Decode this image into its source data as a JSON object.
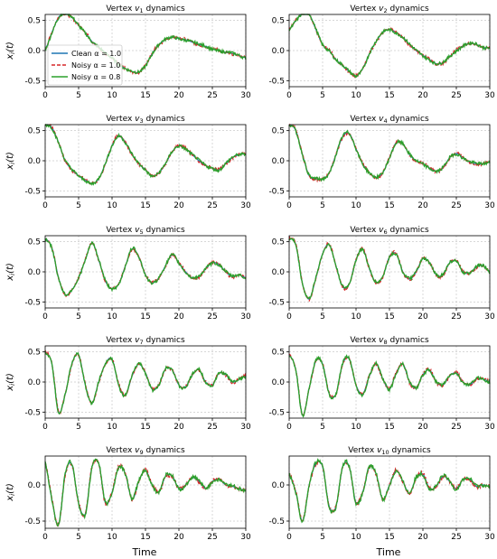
{
  "figure": {
    "xlabel": "Time",
    "ylabel": "x_i(t)",
    "legend": [
      {
        "label": "Clean α = 1.0",
        "style": "solid",
        "color": "#1f77b4"
      },
      {
        "label": "Noisy α = 1.0",
        "style": "dashed",
        "color": "#d62728"
      },
      {
        "label": "Noisy α = 0.8",
        "style": "solid",
        "color": "#2ca02c"
      }
    ],
    "colors": {
      "clean": "#1f77b4",
      "noisy_1": "#d62728",
      "noisy_08": "#2ca02c",
      "grid": "#b0b0b0"
    }
  },
  "chart_data": [
    {
      "type": "line",
      "title": "Vertex v1 dynamics",
      "vertex": "1",
      "xlim": [
        0,
        30
      ],
      "ylim": [
        -0.6,
        0.6
      ],
      "yticks": [
        -0.5,
        0.0,
        0.5
      ],
      "xticks": [
        0,
        5,
        10,
        15,
        20,
        25,
        30
      ],
      "grid": true,
      "legend_position": "upper-left",
      "x": [
        0,
        1,
        2,
        3,
        4,
        5,
        6,
        7,
        8,
        9,
        10,
        11,
        12,
        13,
        14,
        15,
        16,
        17,
        18,
        19,
        20,
        21,
        22,
        23,
        24,
        25,
        26,
        27,
        28,
        29,
        30
      ],
      "series": [
        {
          "name": "Clean α = 1.0",
          "values": [
            0.02,
            0.3,
            0.55,
            0.62,
            0.55,
            0.42,
            0.3,
            0.15,
            0.05,
            -0.05,
            -0.12,
            -0.22,
            -0.3,
            -0.35,
            -0.36,
            -0.25,
            -0.05,
            0.1,
            0.18,
            0.22,
            0.2,
            0.18,
            0.14,
            0.1,
            0.07,
            0.03,
            0.0,
            -0.03,
            -0.05,
            -0.08,
            -0.12
          ]
        }
      ]
    },
    {
      "type": "line",
      "title": "Vertex v2 dynamics",
      "vertex": "2",
      "xlim": [
        0,
        30
      ],
      "ylim": [
        -0.6,
        0.6
      ],
      "yticks": [
        -0.5,
        0.0,
        0.5
      ],
      "xticks": [
        0,
        5,
        10,
        15,
        20,
        25,
        30
      ],
      "grid": true,
      "x": [
        0,
        1,
        2,
        3,
        4,
        5,
        6,
        7,
        8,
        9,
        10,
        11,
        12,
        13,
        14,
        15,
        16,
        17,
        18,
        19,
        20,
        21,
        22,
        23,
        24,
        25,
        26,
        27,
        28,
        29,
        30
      ],
      "series": [
        {
          "name": "Clean α = 1.0",
          "values": [
            0.35,
            0.5,
            0.62,
            0.6,
            0.35,
            0.1,
            0.0,
            -0.15,
            -0.25,
            -0.35,
            -0.42,
            -0.3,
            -0.05,
            0.15,
            0.3,
            0.35,
            0.3,
            0.22,
            0.1,
            0.0,
            -0.08,
            -0.15,
            -0.22,
            -0.2,
            -0.1,
            0.0,
            0.08,
            0.12,
            0.1,
            0.05,
            0.05
          ]
        }
      ]
    },
    {
      "type": "line",
      "title": "Vertex v3 dynamics",
      "vertex": "3",
      "xlim": [
        0,
        30
      ],
      "ylim": [
        -0.6,
        0.6
      ],
      "yticks": [
        -0.5,
        0.0,
        0.5
      ],
      "xticks": [
        0,
        5,
        10,
        15,
        20,
        25,
        30
      ],
      "grid": true,
      "x": [
        0,
        1,
        2,
        3,
        4,
        5,
        6,
        7,
        8,
        9,
        10,
        11,
        12,
        13,
        14,
        15,
        16,
        17,
        18,
        19,
        20,
        21,
        22,
        23,
        24,
        25,
        26,
        27,
        28,
        29,
        30
      ],
      "series": [
        {
          "name": "Clean α = 1.0",
          "values": [
            0.6,
            0.55,
            0.3,
            0.0,
            -0.15,
            -0.25,
            -0.32,
            -0.38,
            -0.3,
            -0.05,
            0.25,
            0.42,
            0.3,
            0.1,
            -0.05,
            -0.15,
            -0.25,
            -0.2,
            -0.05,
            0.15,
            0.25,
            0.2,
            0.1,
            0.0,
            -0.08,
            -0.12,
            -0.15,
            -0.05,
            0.05,
            0.1,
            0.12
          ]
        }
      ]
    },
    {
      "type": "line",
      "title": "Vertex v4 dynamics",
      "vertex": "4",
      "xlim": [
        0,
        30
      ],
      "ylim": [
        -0.6,
        0.6
      ],
      "yticks": [
        -0.5,
        0.0,
        0.5
      ],
      "xticks": [
        0,
        5,
        10,
        15,
        20,
        25,
        30
      ],
      "grid": true,
      "x": [
        0,
        1,
        2,
        3,
        4,
        5,
        6,
        7,
        8,
        9,
        10,
        11,
        12,
        13,
        14,
        15,
        16,
        17,
        18,
        19,
        20,
        21,
        22,
        23,
        24,
        25,
        26,
        27,
        28,
        29,
        30
      ],
      "series": [
        {
          "name": "Clean α = 1.0",
          "values": [
            0.6,
            0.5,
            0.1,
            -0.25,
            -0.3,
            -0.3,
            -0.2,
            0.1,
            0.4,
            0.45,
            0.2,
            -0.05,
            -0.2,
            -0.28,
            -0.2,
            0.05,
            0.3,
            0.28,
            0.1,
            0.0,
            -0.05,
            -0.12,
            -0.18,
            -0.12,
            0.05,
            0.12,
            0.05,
            -0.02,
            -0.05,
            -0.05,
            -0.02
          ]
        }
      ]
    },
    {
      "type": "line",
      "title": "Vertex v5 dynamics",
      "vertex": "5",
      "xlim": [
        0,
        30
      ],
      "ylim": [
        -0.6,
        0.6
      ],
      "yticks": [
        -0.5,
        0.0,
        0.5
      ],
      "xticks": [
        0,
        5,
        10,
        15,
        20,
        25,
        30
      ],
      "grid": true,
      "x": [
        0,
        1,
        2,
        3,
        4,
        5,
        6,
        7,
        8,
        9,
        10,
        11,
        12,
        13,
        14,
        15,
        16,
        17,
        18,
        19,
        20,
        21,
        22,
        23,
        24,
        25,
        26,
        27,
        28,
        29,
        30
      ],
      "series": [
        {
          "name": "Clean α = 1.0",
          "values": [
            0.55,
            0.4,
            -0.1,
            -0.38,
            -0.3,
            -0.1,
            0.2,
            0.48,
            0.2,
            -0.15,
            -0.28,
            -0.2,
            0.1,
            0.38,
            0.25,
            -0.05,
            -0.18,
            -0.1,
            0.1,
            0.28,
            0.15,
            0.0,
            -0.1,
            -0.08,
            0.05,
            0.15,
            0.12,
            0.0,
            -0.08,
            -0.05,
            -0.1
          ]
        }
      ]
    },
    {
      "type": "line",
      "title": "Vertex v6 dynamics",
      "vertex": "6",
      "xlim": [
        0,
        30
      ],
      "ylim": [
        -0.6,
        0.6
      ],
      "yticks": [
        -0.5,
        0.0,
        0.5
      ],
      "xticks": [
        0,
        5,
        10,
        15,
        20,
        25,
        30
      ],
      "grid": true,
      "x": [
        0,
        1,
        2,
        3,
        4,
        5,
        6,
        7,
        8,
        9,
        10,
        11,
        12,
        13,
        14,
        15,
        16,
        17,
        18,
        19,
        20,
        21,
        22,
        23,
        24,
        25,
        26,
        27,
        28,
        29,
        30
      ],
      "series": [
        {
          "name": "Clean α = 1.0",
          "values": [
            0.55,
            0.45,
            -0.2,
            -0.45,
            -0.1,
            0.3,
            0.45,
            0.1,
            -0.25,
            -0.2,
            0.2,
            0.38,
            0.05,
            -0.18,
            -0.08,
            0.25,
            0.3,
            0.0,
            -0.12,
            0.0,
            0.22,
            0.15,
            -0.05,
            -0.05,
            0.15,
            0.18,
            0.0,
            -0.02,
            0.08,
            0.1,
            0.0
          ]
        }
      ]
    },
    {
      "type": "line",
      "title": "Vertex v7 dynamics",
      "vertex": "7",
      "xlim": [
        0,
        30
      ],
      "ylim": [
        -0.6,
        0.6
      ],
      "yticks": [
        -0.5,
        0.0,
        0.5
      ],
      "xticks": [
        0,
        5,
        10,
        15,
        20,
        25,
        30
      ],
      "grid": true,
      "x": [
        0,
        1,
        2,
        3,
        4,
        5,
        6,
        7,
        8,
        9,
        10,
        11,
        12,
        13,
        14,
        15,
        16,
        17,
        18,
        19,
        20,
        21,
        22,
        23,
        24,
        25,
        26,
        27,
        28,
        29,
        30
      ],
      "series": [
        {
          "name": "Clean α = 1.0",
          "values": [
            0.5,
            0.3,
            -0.5,
            -0.2,
            0.3,
            0.45,
            -0.05,
            -0.35,
            0.0,
            0.3,
            0.38,
            -0.05,
            -0.22,
            0.1,
            0.3,
            0.15,
            -0.12,
            -0.05,
            0.22,
            0.2,
            -0.05,
            -0.08,
            0.12,
            0.2,
            0.0,
            -0.05,
            0.15,
            0.12,
            0.0,
            0.05,
            0.1
          ]
        }
      ]
    },
    {
      "type": "line",
      "title": "Vertex v8 dynamics",
      "vertex": "8",
      "xlim": [
        0,
        30
      ],
      "ylim": [
        -0.6,
        0.6
      ],
      "yticks": [
        -0.5,
        0.0,
        0.5
      ],
      "xticks": [
        0,
        5,
        10,
        15,
        20,
        25,
        30
      ],
      "grid": true,
      "x": [
        0,
        1,
        2,
        3,
        4,
        5,
        6,
        7,
        8,
        9,
        10,
        11,
        12,
        13,
        14,
        15,
        16,
        17,
        18,
        19,
        20,
        21,
        22,
        23,
        24,
        25,
        26,
        27,
        28,
        29,
        30
      ],
      "series": [
        {
          "name": "Clean α = 1.0",
          "values": [
            0.45,
            0.2,
            -0.55,
            -0.1,
            0.35,
            0.3,
            -0.2,
            -0.2,
            0.3,
            0.38,
            -0.05,
            -0.2,
            0.1,
            0.3,
            0.05,
            -0.12,
            0.15,
            0.3,
            0.0,
            -0.1,
            0.12,
            0.2,
            0.0,
            -0.05,
            0.1,
            0.15,
            0.0,
            -0.05,
            0.05,
            0.05,
            0.0
          ]
        }
      ]
    },
    {
      "type": "line",
      "title": "Vertex v9 dynamics",
      "vertex": "9",
      "xlim": [
        0,
        30
      ],
      "ylim": [
        -0.6,
        0.4
      ],
      "yticks": [
        -0.5,
        0.0
      ],
      "xticks": [
        0,
        5,
        10,
        15,
        20,
        25,
        30
      ],
      "grid": true,
      "x": [
        0,
        1,
        2,
        3,
        4,
        5,
        6,
        7,
        8,
        9,
        10,
        11,
        12,
        13,
        14,
        15,
        16,
        17,
        18,
        19,
        20,
        21,
        22,
        23,
        24,
        25,
        26,
        27,
        28,
        29,
        30
      ],
      "series": [
        {
          "name": "Clean α = 1.0",
          "values": [
            0.3,
            -0.2,
            -0.55,
            0.15,
            0.28,
            -0.25,
            -0.4,
            0.25,
            0.3,
            -0.25,
            -0.1,
            0.25,
            0.15,
            -0.2,
            0.05,
            0.2,
            0.0,
            -0.1,
            0.12,
            0.12,
            -0.05,
            0.0,
            0.1,
            0.05,
            -0.05,
            0.05,
            0.08,
            0.0,
            -0.02,
            -0.05,
            -0.08
          ]
        }
      ]
    },
    {
      "type": "line",
      "title": "Vertex v10 dynamics",
      "vertex": "10",
      "xlim": [
        0,
        30
      ],
      "ylim": [
        -0.6,
        0.4
      ],
      "yticks": [
        -0.5,
        0.0
      ],
      "xticks": [
        0,
        5,
        10,
        15,
        20,
        25,
        30
      ],
      "grid": true,
      "x": [
        0,
        1,
        2,
        3,
        4,
        5,
        6,
        7,
        8,
        9,
        10,
        11,
        12,
        13,
        14,
        15,
        16,
        17,
        18,
        19,
        20,
        21,
        22,
        23,
        24,
        25,
        26,
        27,
        28,
        29,
        30
      ],
      "series": [
        {
          "name": "Clean α = 1.0",
          "values": [
            0.15,
            -0.1,
            -0.5,
            0.0,
            0.3,
            0.25,
            -0.3,
            -0.3,
            0.25,
            0.25,
            -0.25,
            -0.1,
            0.25,
            0.15,
            -0.2,
            0.0,
            0.2,
            0.05,
            -0.12,
            0.1,
            0.15,
            -0.05,
            -0.02,
            0.12,
            0.05,
            -0.05,
            0.08,
            0.08,
            -0.02,
            0.0,
            -0.02
          ]
        }
      ]
    }
  ]
}
